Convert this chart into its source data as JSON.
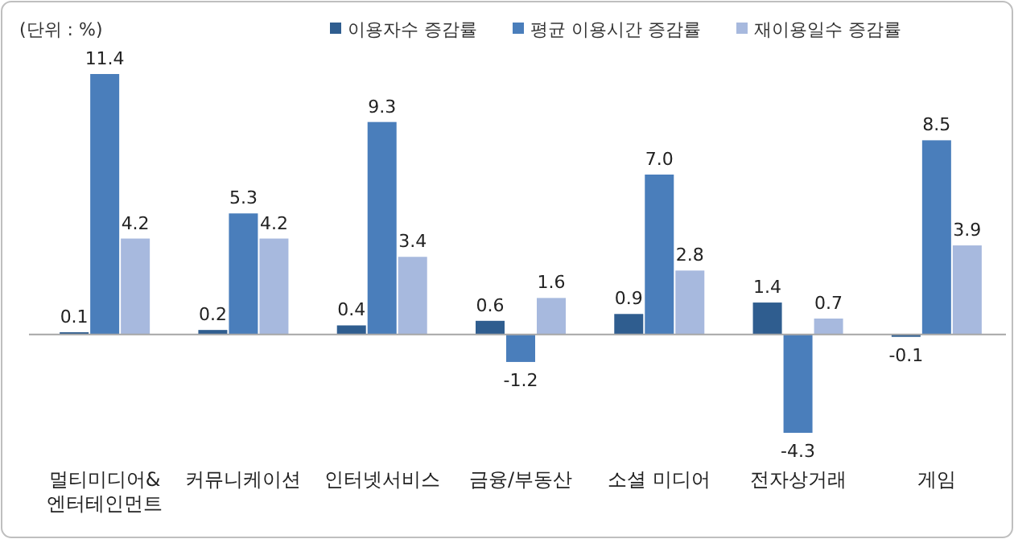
{
  "chart_data": {
    "type": "bar",
    "categories": [
      "멀티미디어&\n엔터테인먼트",
      "커뮤니케이션",
      "인터넷서비스",
      "금융/부동산",
      "소셜 미디어",
      "전자상거래",
      "게임"
    ],
    "series": [
      {
        "name": "이용자수 증감률",
        "color": "#2f5d8f",
        "values": [
          0.1,
          0.2,
          0.4,
          0.6,
          0.9,
          1.4,
          -0.1
        ],
        "value_labels": [
          "0.1",
          "0.2",
          "0.4",
          "0.6",
          "0.9",
          "1.4",
          "-0.1"
        ]
      },
      {
        "name": "평균 이용시간 증감률",
        "color": "#4a7ebb",
        "values": [
          11.4,
          5.3,
          9.3,
          -1.2,
          7.0,
          -4.3,
          8.5
        ],
        "value_labels": [
          "11.4",
          "5.3",
          "9.3",
          "-1.2",
          "7.0",
          "-4.3",
          "8.5"
        ]
      },
      {
        "name": "재이용일수 증감률",
        "color": "#a7b9de",
        "values": [
          4.2,
          4.2,
          3.4,
          1.6,
          2.8,
          0.7,
          3.9
        ],
        "value_labels": [
          "4.2",
          "4.2",
          "3.4",
          "1.6",
          "2.8",
          "0.7",
          "3.9"
        ]
      }
    ],
    "legend": "top",
    "annotations": [
      "(단위 : %)"
    ]
  }
}
